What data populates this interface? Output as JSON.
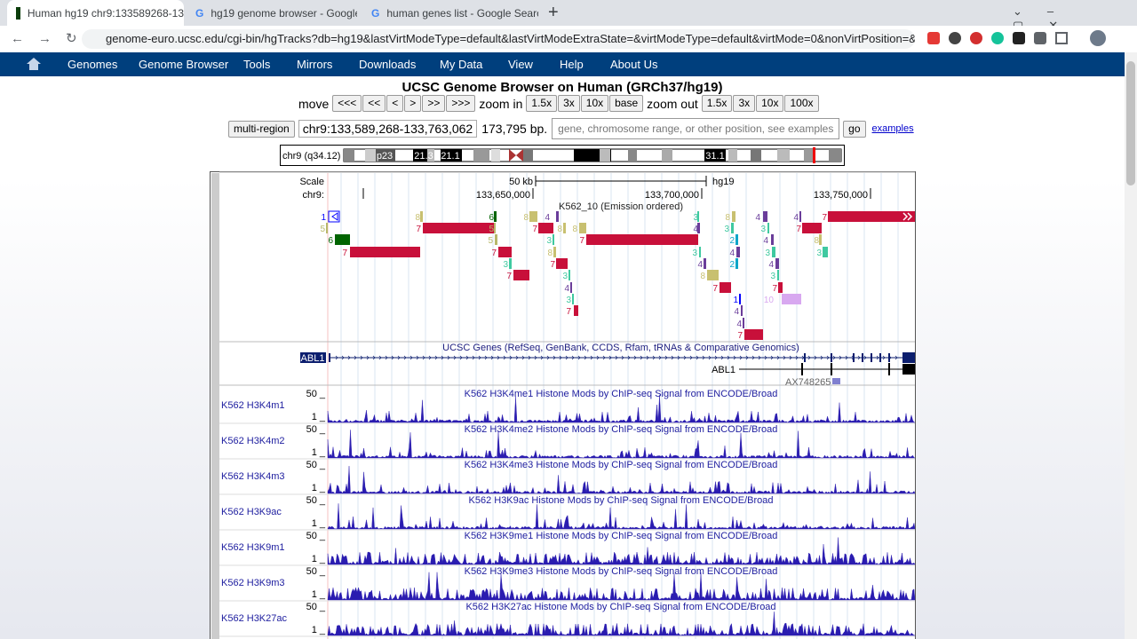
{
  "tabs": [
    "Human hg19 chr9:133589268-13",
    "hg19 genome browser - Google",
    "human genes list - Google Searc"
  ],
  "address": "genome-euro.ucsc.edu/cgi-bin/hgTracks?db=hg19&lastVirtModeType=default&lastVirtModeExtraState=&virtModeType=default&virtMode=0&nonVirtPosition=&p...",
  "nav": [
    "Genomes",
    "Genome Browser",
    "Tools",
    "Mirrors",
    "Downloads",
    "My Data",
    "View",
    "Help",
    "About Us"
  ],
  "title": "UCSC Genome Browser on Human (GRCh37/hg19)",
  "controls": {
    "move_label": "move",
    "move_buttons": [
      "<<<",
      "<<",
      "<",
      ">",
      ">>",
      ">>>"
    ],
    "zoom_in_label": "zoom in",
    "zoom_in_buttons": [
      "1.5x",
      "3x",
      "10x",
      "base"
    ],
    "zoom_out_label": "zoom out",
    "zoom_out_buttons": [
      "1.5x",
      "3x",
      "10x",
      "100x"
    ]
  },
  "position": {
    "multi_region": "multi-region",
    "range": "chr9:133,589,268-133,763,062",
    "size": "173,795 bp.",
    "search_placeholder": "gene, chromosome range, or other position, see examples",
    "go": "go",
    "examples": "examples"
  },
  "ideogram": {
    "label": "chr9 (q34.12)",
    "bands": [
      "p23",
      "21.3",
      "21.1",
      "9q12",
      "31.1"
    ]
  },
  "ruler": {
    "scale_label": "Scale",
    "scale_value": "50 kb",
    "assembly": "hg19",
    "chrom_label": "chr9:",
    "positions": [
      "133,650,000",
      "133,700,000",
      "133,750,000"
    ]
  },
  "chromhmm": {
    "title": "K562_10 (Emission ordered)",
    "states": [
      "1",
      "8",
      "6",
      "8",
      "4",
      "3",
      "8",
      "4",
      "4",
      "7",
      "5",
      "7",
      "5",
      "7",
      "8",
      "8",
      "4",
      "3",
      "3",
      "7",
      "6",
      "5",
      "3",
      "7",
      "2",
      "4",
      "8",
      "7",
      "7",
      "8",
      "3",
      "4",
      "3",
      "3",
      "3",
      "7",
      "4",
      "2",
      "4",
      "7",
      "3",
      "8",
      "3",
      "4",
      "7",
      "7",
      "3",
      "1",
      "10",
      "7",
      "4",
      "4",
      "7"
    ]
  },
  "genes": {
    "title": "UCSC Genes (RefSeq, GenBank, CCDS, Rfam, tRNAs & Comparative Genomics)",
    "side_label": "ABL1",
    "names": [
      "ABL1",
      "AX748265"
    ]
  },
  "signal_tracks": [
    {
      "label": "K562 H3K4m1",
      "title": "K562 H3K4me1 Histone Mods by ChIP-seq Signal from ENCODE/Broad",
      "max": "50 _",
      "min": "1 _"
    },
    {
      "label": "K562 H3K4m2",
      "title": "K562 H3K4me2 Histone Mods by ChIP-seq Signal from ENCODE/Broad",
      "max": "50 _",
      "min": "1 _"
    },
    {
      "label": "K562 H3K4m3",
      "title": "K562 H3K4me3 Histone Mods by ChIP-seq Signal from ENCODE/Broad",
      "max": "50 _",
      "min": "1 _"
    },
    {
      "label": "K562 H3K9ac",
      "title": "K562 H3K9ac Histone Mods by ChIP-seq Signal from ENCODE/Broad",
      "max": "50 _",
      "min": "1 _"
    },
    {
      "label": "K562 H3K9m1",
      "title": "K562 H3K9me1 Histone Mods by ChIP-seq Signal from ENCODE/Broad",
      "max": "50 _",
      "min": "1 _"
    },
    {
      "label": "K562 H3K9m3",
      "title": "K562 H3K9me3 Histone Mods by ChIP-seq Signal from ENCODE/Broad",
      "max": "50 _",
      "min": "1 _"
    },
    {
      "label": "K562 H3K27ac",
      "title": "K562 H3K27ac Histone Mods by ChIP-seq Signal from ENCODE/Broad",
      "max": "50 _",
      "min": "1 _"
    }
  ]
}
